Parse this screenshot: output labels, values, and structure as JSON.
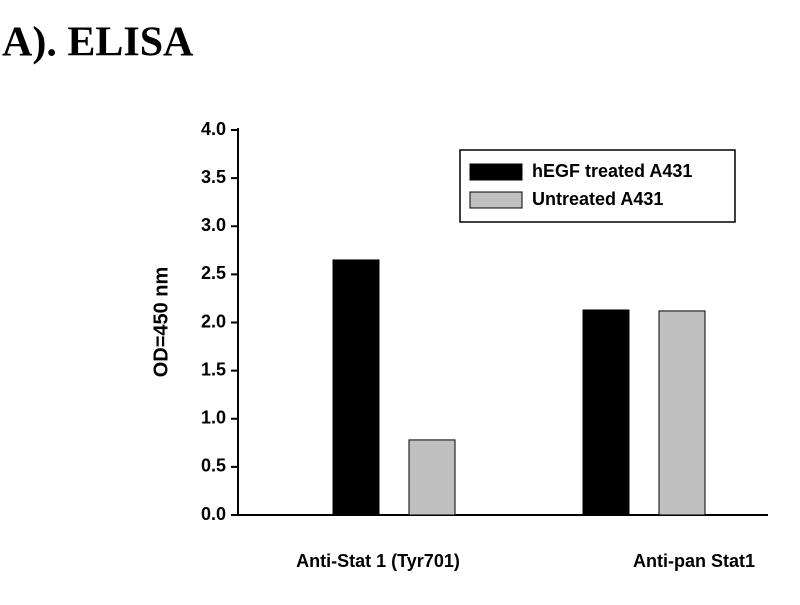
{
  "chart_data": {
    "type": "bar",
    "title": "A). ELISA",
    "ylabel": "OD=450 nm",
    "categories": [
      "Anti-Stat 1 (Tyr701)",
      "Anti-pan Stat1"
    ],
    "series": [
      {
        "name": "hEGF treated A431",
        "color": "#000000",
        "values": [
          2.65,
          2.13
        ]
      },
      {
        "name": "Untreated A431",
        "color": "#c0c0c0",
        "values": [
          0.78,
          2.12
        ]
      }
    ],
    "ylim": [
      0,
      4
    ],
    "yticks": [
      {
        "value": 0,
        "label": "0.0"
      },
      0.5,
      {
        "value": 1,
        "label": "1.0"
      },
      1.5,
      {
        "value": 2,
        "label": "2.0"
      },
      2.5,
      {
        "value": 3,
        "label": "3.0"
      },
      3.5,
      {
        "value": 4,
        "label": "4.0"
      }
    ],
    "legend": "upper right",
    "grid": false
  }
}
